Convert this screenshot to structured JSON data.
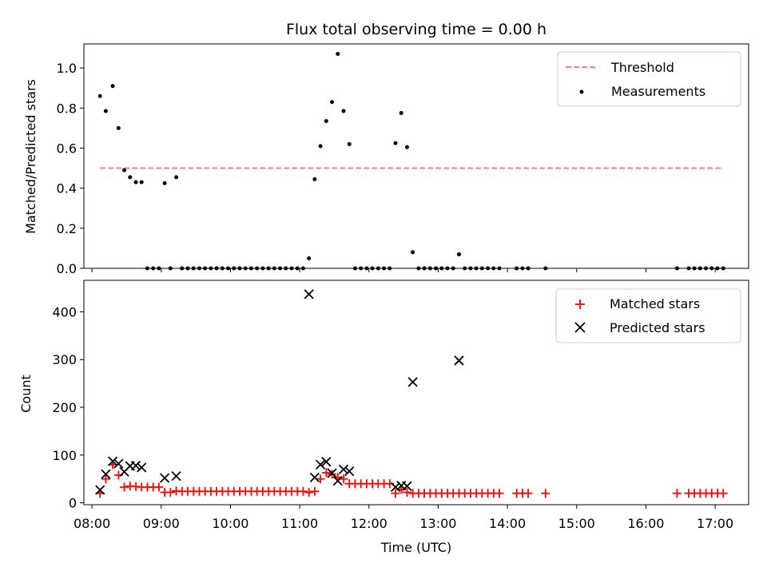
{
  "title": "Flux total observing time = 0.00 h",
  "colors": {
    "threshold": "#ff7f7f",
    "measurement": "#000000",
    "matched": "#ff0000",
    "predicted": "#000000"
  },
  "chart_data": [
    {
      "type": "scatter",
      "title": "Flux total observing time = 0.00 h",
      "xlabel": "",
      "ylabel": "Matched/Predicted stars",
      "xlim": [
        "07:53",
        "17:29"
      ],
      "ylim": [
        0,
        1.12
      ],
      "yticks": [
        "0.0",
        "0.2",
        "0.4",
        "0.6",
        "0.8",
        "1.0"
      ],
      "legend_position": "top-right",
      "grid": false,
      "threshold": {
        "name": "Threshold",
        "value": 0.5,
        "x_range": [
          "08:07",
          "17:07"
        ],
        "style": "dashed"
      },
      "series": [
        {
          "name": "Measurements",
          "marker": "dot",
          "points": [
            [
              "08:07",
              0.86
            ],
            [
              "08:12",
              0.785
            ],
            [
              "08:18",
              0.91
            ],
            [
              "08:23",
              0.7
            ],
            [
              "08:28",
              0.49
            ],
            [
              "08:33",
              0.455
            ],
            [
              "08:38",
              0.43
            ],
            [
              "08:43",
              0.43
            ],
            [
              "08:48",
              0.0
            ],
            [
              "08:53",
              0.0
            ],
            [
              "08:58",
              0.0
            ],
            [
              "09:03",
              0.425
            ],
            [
              "09:08",
              0.0
            ],
            [
              "09:13",
              0.455
            ],
            [
              "09:18",
              0.0
            ],
            [
              "09:23",
              0.0
            ],
            [
              "09:28",
              0.0
            ],
            [
              "09:33",
              0.0
            ],
            [
              "09:38",
              0.0
            ],
            [
              "09:43",
              0.0
            ],
            [
              "09:48",
              0.0
            ],
            [
              "09:53",
              0.0
            ],
            [
              "09:58",
              0.0
            ],
            [
              "10:03",
              0.0
            ],
            [
              "10:08",
              0.0
            ],
            [
              "10:13",
              0.0
            ],
            [
              "10:18",
              0.0
            ],
            [
              "10:23",
              0.0
            ],
            [
              "10:28",
              0.0
            ],
            [
              "10:33",
              0.0
            ],
            [
              "10:38",
              0.0
            ],
            [
              "10:43",
              0.0
            ],
            [
              "10:48",
              0.0
            ],
            [
              "10:53",
              0.0
            ],
            [
              "10:58",
              0.0
            ],
            [
              "11:03",
              0.0
            ],
            [
              "11:08",
              0.05
            ],
            [
              "11:13",
              0.445
            ],
            [
              "11:18",
              0.61
            ],
            [
              "11:23",
              0.735
            ],
            [
              "11:28",
              0.83
            ],
            [
              "11:33",
              1.07
            ],
            [
              "11:38",
              0.785
            ],
            [
              "11:43",
              0.62
            ],
            [
              "11:48",
              0.0
            ],
            [
              "11:53",
              0.0
            ],
            [
              "11:58",
              0.0
            ],
            [
              "12:03",
              0.0
            ],
            [
              "12:08",
              0.0
            ],
            [
              "12:13",
              0.0
            ],
            [
              "12:18",
              0.0
            ],
            [
              "12:23",
              0.625
            ],
            [
              "12:28",
              0.775
            ],
            [
              "12:33",
              0.605
            ],
            [
              "12:38",
              0.08
            ],
            [
              "12:43",
              0.0
            ],
            [
              "12:48",
              0.0
            ],
            [
              "12:53",
              0.0
            ],
            [
              "12:58",
              0.0
            ],
            [
              "13:03",
              0.0
            ],
            [
              "13:08",
              0.0
            ],
            [
              "13:13",
              0.0
            ],
            [
              "13:18",
              0.07
            ],
            [
              "13:23",
              0.0
            ],
            [
              "13:28",
              0.0
            ],
            [
              "13:33",
              0.0
            ],
            [
              "13:38",
              0.0
            ],
            [
              "13:43",
              0.0
            ],
            [
              "13:48",
              0.0
            ],
            [
              "13:53",
              0.0
            ],
            [
              "14:08",
              0.0
            ],
            [
              "14:13",
              0.0
            ],
            [
              "14:18",
              0.0
            ],
            [
              "14:33",
              0.0
            ],
            [
              "16:27",
              0.0
            ],
            [
              "16:37",
              0.0
            ],
            [
              "16:42",
              0.0
            ],
            [
              "16:47",
              0.0
            ],
            [
              "16:52",
              0.0
            ],
            [
              "16:57",
              0.0
            ],
            [
              "17:02",
              0.0
            ],
            [
              "17:07",
              0.0
            ]
          ]
        }
      ]
    },
    {
      "type": "scatter",
      "title": "",
      "xlabel": "Time (UTC)",
      "ylabel": "Count",
      "xlim": [
        "07:53",
        "17:29"
      ],
      "ylim": [
        -4,
        466
      ],
      "xticks": [
        "08:00",
        "09:00",
        "10:00",
        "11:00",
        "12:00",
        "13:00",
        "14:00",
        "15:00",
        "16:00",
        "17:00"
      ],
      "yticks": [
        "0",
        "100",
        "200",
        "300",
        "400"
      ],
      "legend_position": "top-right",
      "grid": false,
      "series": [
        {
          "name": "Matched stars",
          "marker": "plus",
          "points": [
            [
              "08:07",
              20
            ],
            [
              "08:12",
              50
            ],
            [
              "08:18",
              80
            ],
            [
              "08:23",
              58
            ],
            [
              "08:28",
              33
            ],
            [
              "08:33",
              35
            ],
            [
              "08:38",
              34
            ],
            [
              "08:43",
              33
            ],
            [
              "08:48",
              33
            ],
            [
              "08:53",
              33
            ],
            [
              "08:58",
              33
            ],
            [
              "09:03",
              22
            ],
            [
              "09:08",
              22
            ],
            [
              "09:13",
              25
            ],
            [
              "09:18",
              24
            ],
            [
              "09:23",
              24
            ],
            [
              "09:28",
              24
            ],
            [
              "09:33",
              24
            ],
            [
              "09:38",
              24
            ],
            [
              "09:43",
              24
            ],
            [
              "09:48",
              24
            ],
            [
              "09:53",
              24
            ],
            [
              "09:58",
              24
            ],
            [
              "10:03",
              24
            ],
            [
              "10:08",
              24
            ],
            [
              "10:13",
              24
            ],
            [
              "10:18",
              24
            ],
            [
              "10:23",
              24
            ],
            [
              "10:28",
              24
            ],
            [
              "10:33",
              24
            ],
            [
              "10:38",
              24
            ],
            [
              "10:43",
              24
            ],
            [
              "10:48",
              24
            ],
            [
              "10:53",
              24
            ],
            [
              "10:58",
              24
            ],
            [
              "11:03",
              24
            ],
            [
              "11:08",
              22
            ],
            [
              "11:13",
              24
            ],
            [
              "11:18",
              50
            ],
            [
              "11:23",
              63
            ],
            [
              "11:28",
              60
            ],
            [
              "11:33",
              53
            ],
            [
              "11:38",
              50
            ],
            [
              "11:43",
              40
            ],
            [
              "11:48",
              40
            ],
            [
              "11:53",
              40
            ],
            [
              "11:58",
              40
            ],
            [
              "12:03",
              40
            ],
            [
              "12:08",
              40
            ],
            [
              "12:13",
              40
            ],
            [
              "12:18",
              40
            ],
            [
              "12:23",
              20
            ],
            [
              "12:28",
              28
            ],
            [
              "12:33",
              22
            ],
            [
              "12:38",
              20
            ],
            [
              "12:43",
              20
            ],
            [
              "12:48",
              20
            ],
            [
              "12:53",
              20
            ],
            [
              "12:58",
              20
            ],
            [
              "13:03",
              20
            ],
            [
              "13:08",
              20
            ],
            [
              "13:13",
              20
            ],
            [
              "13:18",
              20
            ],
            [
              "13:23",
              20
            ],
            [
              "13:28",
              20
            ],
            [
              "13:33",
              20
            ],
            [
              "13:38",
              20
            ],
            [
              "13:43",
              20
            ],
            [
              "13:48",
              20
            ],
            [
              "13:53",
              20
            ],
            [
              "14:08",
              20
            ],
            [
              "14:13",
              20
            ],
            [
              "14:18",
              20
            ],
            [
              "14:33",
              20
            ],
            [
              "16:27",
              20
            ],
            [
              "16:37",
              20
            ],
            [
              "16:42",
              20
            ],
            [
              "16:47",
              20
            ],
            [
              "16:52",
              20
            ],
            [
              "16:57",
              20
            ],
            [
              "17:02",
              20
            ],
            [
              "17:07",
              20
            ]
          ]
        },
        {
          "name": "Predicted stars",
          "marker": "x",
          "points": [
            [
              "08:07",
              27
            ],
            [
              "08:12",
              60
            ],
            [
              "08:18",
              87
            ],
            [
              "08:23",
              82
            ],
            [
              "08:28",
              65
            ],
            [
              "08:33",
              77
            ],
            [
              "08:38",
              78
            ],
            [
              "08:43",
              74
            ],
            [
              "09:03",
              52
            ],
            [
              "09:13",
              56
            ],
            [
              "11:08",
              437
            ],
            [
              "11:13",
              53
            ],
            [
              "11:18",
              80
            ],
            [
              "11:23",
              86
            ],
            [
              "11:28",
              62
            ],
            [
              "11:33",
              46
            ],
            [
              "11:38",
              70
            ],
            [
              "11:43",
              66
            ],
            [
              "12:23",
              33
            ],
            [
              "12:28",
              36
            ],
            [
              "12:33",
              35
            ],
            [
              "12:38",
              253
            ],
            [
              "13:18",
              298
            ]
          ]
        }
      ]
    }
  ]
}
